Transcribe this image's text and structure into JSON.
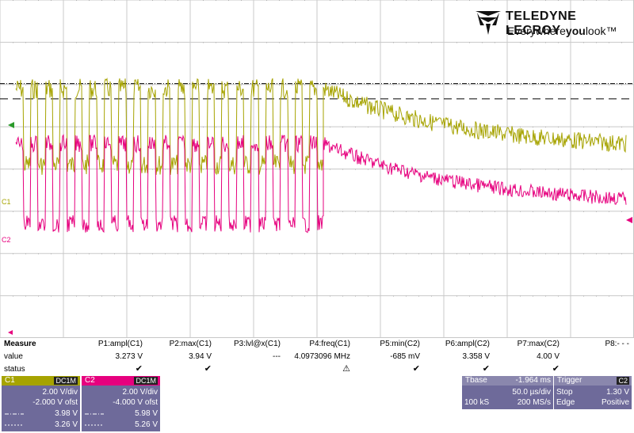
{
  "brand": {
    "name": "TELEDYNE LECROY",
    "tagline_a": "Everywhere",
    "tagline_b": "you",
    "tagline_c": "look",
    "tm": "™"
  },
  "colors": {
    "c1": "#a6a300",
    "c2": "#e6007e",
    "panel": "#6e6a9a"
  },
  "markers": {
    "c1": "C1",
    "c2": "C2"
  },
  "measure": {
    "title": "Measure",
    "row_value": "value",
    "row_status": "status",
    "columns": [
      {
        "header": "P1:ampl(C1)",
        "value": "3.273 V",
        "status": "check"
      },
      {
        "header": "P2:max(C1)",
        "value": "3.94 V",
        "status": "check"
      },
      {
        "header": "P3:lvl@x(C1)",
        "value": "---",
        "status": ""
      },
      {
        "header": "P4:freq(C1)",
        "value": "4.0973096 MHz",
        "status": "warning"
      },
      {
        "header": "P5:min(C2)",
        "value": "-685 mV",
        "status": "check"
      },
      {
        "header": "P6:ampl(C2)",
        "value": "3.358 V",
        "status": "check"
      },
      {
        "header": "P7:max(C2)",
        "value": "4.00 V",
        "status": "check"
      },
      {
        "header": "P8:- - -",
        "value": "",
        "status": ""
      }
    ]
  },
  "c1_box": {
    "label": "C1",
    "coupling": "DC1M",
    "vdiv": "2.00 V/div",
    "offset": "-2.000 V ofst",
    "cursor1_value": "3.98 V",
    "cursor2_value": "3.26 V"
  },
  "c2_box": {
    "label": "C2",
    "coupling": "DC1M",
    "vdiv": "2.00 V/div",
    "offset": "-4.000 V ofst",
    "cursor1_value": "5.98 V",
    "cursor2_value": "5.26 V"
  },
  "tbase": {
    "label": "Tbase",
    "delay": "-1.964 ms",
    "tdiv": "50.0 µs/div",
    "samples": "100 kS",
    "rate": "200 MS/s"
  },
  "trigger": {
    "label": "Trigger",
    "source": "C2",
    "mode": "Stop",
    "level": "1.30 V",
    "type": "Edge",
    "slope": "Positive"
  },
  "chart_data": {
    "type": "line",
    "title": "",
    "xlabel": "",
    "ylabel": "",
    "grid": true,
    "divisions": {
      "x": 10,
      "y": 8
    },
    "x_range_div": [
      0,
      10
    ],
    "y_range_div": [
      -4,
      4
    ],
    "burst_end_div": 5.1,
    "series": [
      {
        "name": "C1",
        "burst_high_div": 1.9,
        "burst_low_div": 0.1,
        "decay_to_div": 0.6
      },
      {
        "name": "C2",
        "burst_high_div": 0.6,
        "burst_low_div": -1.3,
        "decay_to_div": -0.7
      }
    ]
  }
}
